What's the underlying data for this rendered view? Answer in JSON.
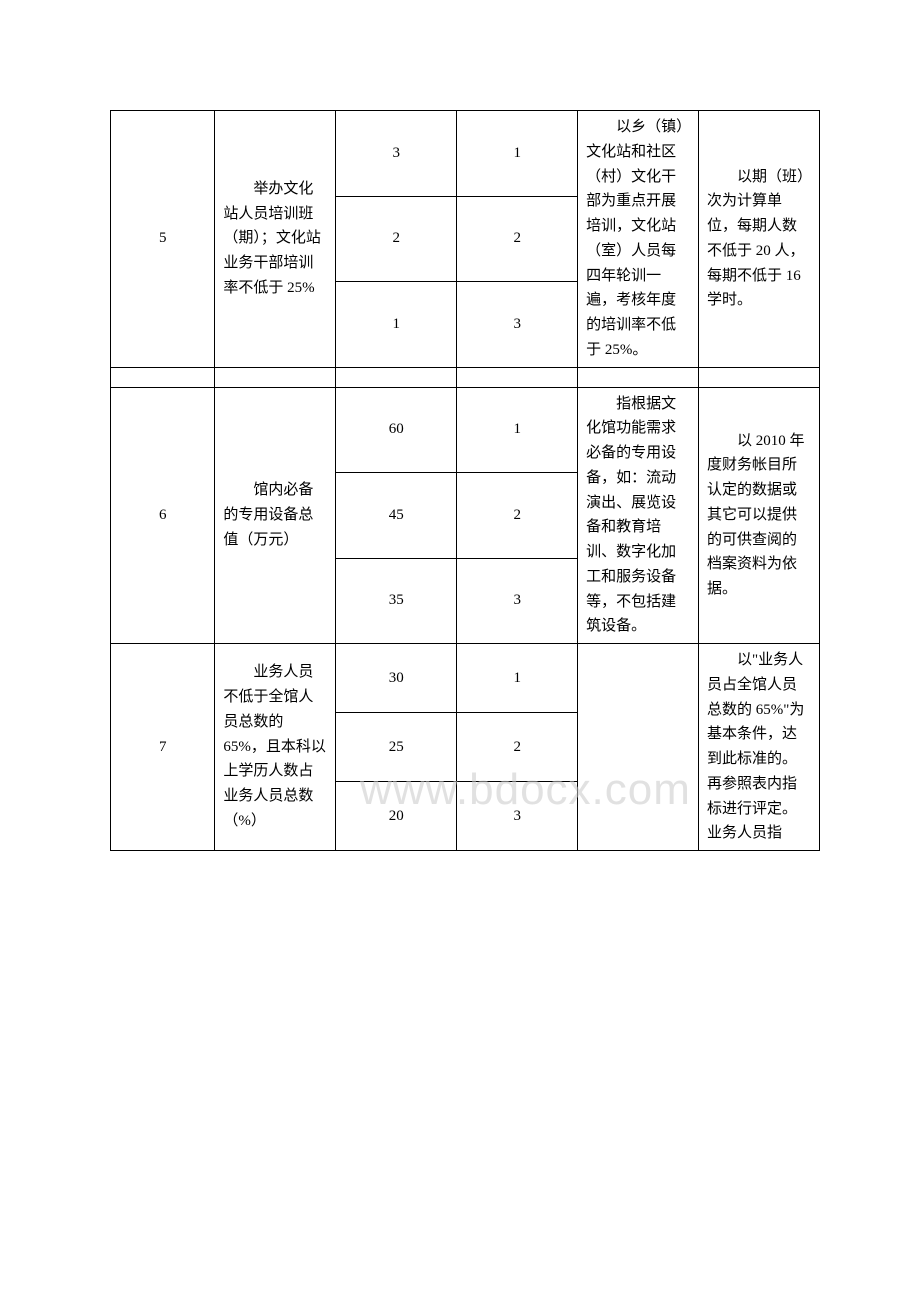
{
  "watermark": "www.bdocx.com",
  "rows": [
    {
      "idx": "5",
      "desc": "举办文化站人员培训班（期）；文化站业务干部培训率不低于 25%",
      "sub": [
        {
          "v1": "3",
          "v2": "1"
        },
        {
          "v1": "2",
          "v2": "2"
        },
        {
          "v1": "1",
          "v2": "3"
        }
      ],
      "note1": "以乡（镇）文化站和社区（村）文化干部为重点开展培训，文化站（室）人员每四年轮训一遍，考核年度的培训率不低于 25%。",
      "note2": "以期（班）次为计算单位，每期人数不低于 20 人，每期不低于 16 学时。"
    },
    {
      "idx": "6",
      "desc": "馆内必备的专用设备总值（万元）",
      "sub": [
        {
          "v1": "60",
          "v2": "1"
        },
        {
          "v1": "45",
          "v2": "2"
        },
        {
          "v1": "35",
          "v2": "3"
        }
      ],
      "note1": "指根据文化馆功能需求必备的专用设备，如：流动演出、展览设备和教育培训、数字化加工和服务设备等，不包括建筑设备。",
      "note2": "以 2010 年度财务帐目所认定的数据或其它可以提供的可供查阅的档案资料为依据。"
    },
    {
      "idx": "7",
      "desc": "业务人员不低于全馆人员总数的 65%，且本科以上学历人数占业务人员总数（%）",
      "sub": [
        {
          "v1": "30",
          "v2": "1"
        },
        {
          "v1": "25",
          "v2": "2"
        },
        {
          "v1": "20",
          "v2": "3"
        }
      ],
      "note1": "",
      "note2": "以\"业务人员占全馆人员总数的 65%\"为基本条件，达到此标准的。再参照表内指标进行评定。业务人员指"
    }
  ]
}
